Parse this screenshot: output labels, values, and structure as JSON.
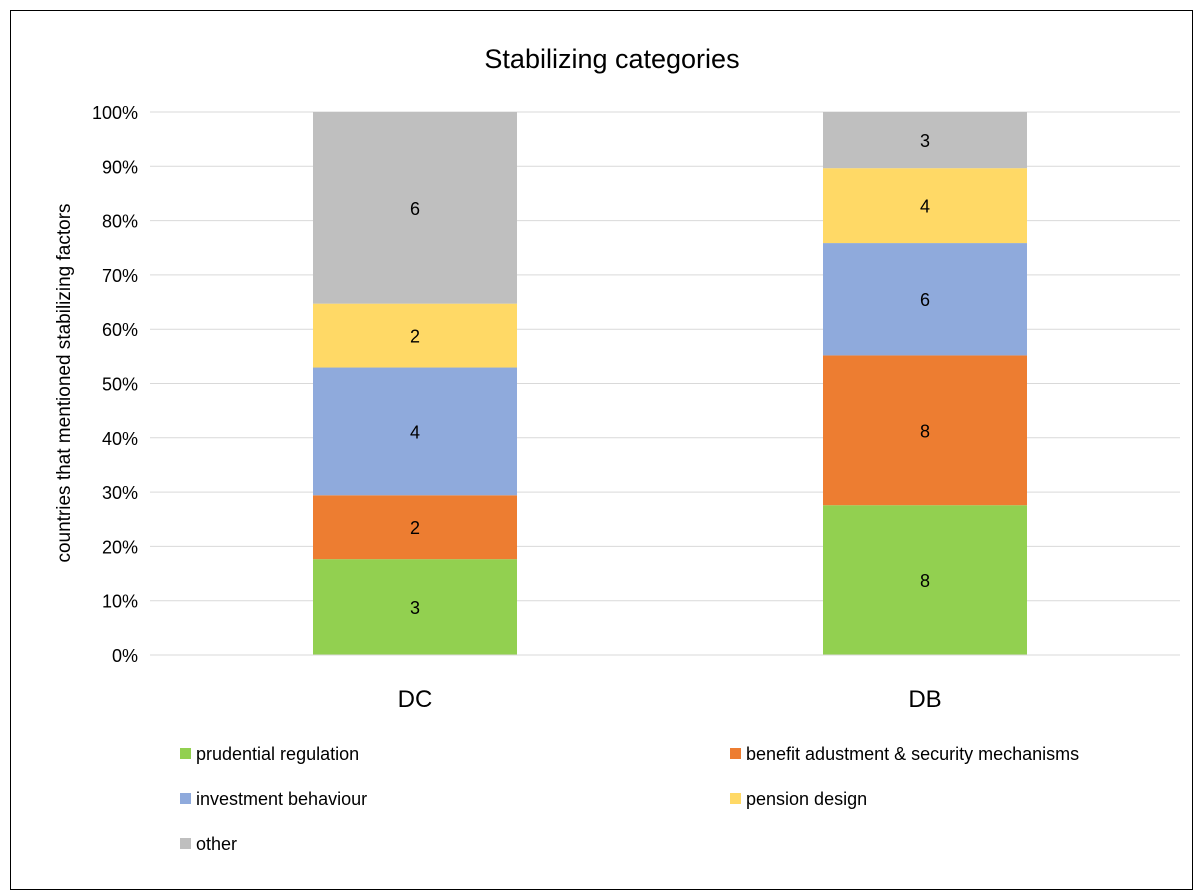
{
  "chart_data": {
    "type": "bar",
    "stacked": true,
    "normalized": true,
    "title": "Stabilizing categories",
    "ylabel": "countries that mentioned stabilizing factors",
    "xlabel": "",
    "categories": [
      "DC",
      "DB"
    ],
    "ylim": [
      0,
      100
    ],
    "yticks": [
      "0%",
      "10%",
      "20%",
      "30%",
      "40%",
      "50%",
      "60%",
      "70%",
      "80%",
      "90%",
      "100%"
    ],
    "grid": true,
    "legend_position": "bottom",
    "series": [
      {
        "name": "prudential regulation",
        "values": [
          3,
          8
        ],
        "color": "#92D050"
      },
      {
        "name": "benefit adustment & security mechanisms",
        "values": [
          2,
          8
        ],
        "color": "#ED7D31"
      },
      {
        "name": "investment behaviour",
        "values": [
          4,
          6
        ],
        "color": "#8FAADC"
      },
      {
        "name": "pension design",
        "values": [
          2,
          4
        ],
        "color": "#FFD966"
      },
      {
        "name": "other",
        "values": [
          6,
          3
        ],
        "color": "#BFBFBF"
      }
    ]
  }
}
